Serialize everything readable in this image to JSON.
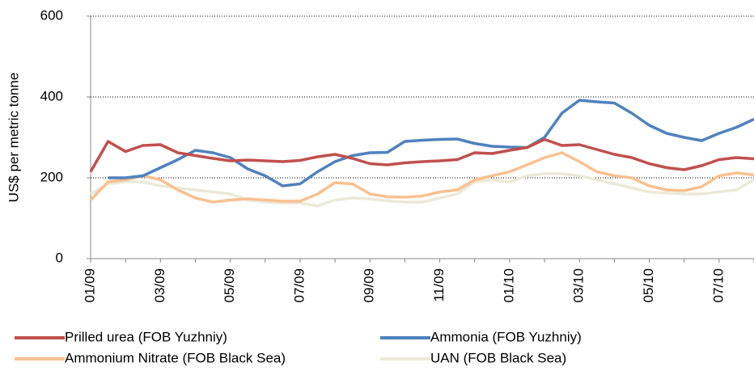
{
  "chart_data": {
    "type": "line",
    "y_label": "US$ per metric tonne",
    "categories": [
      "01/09",
      null,
      null,
      null,
      "03/09",
      null,
      null,
      null,
      "05/09",
      null,
      null,
      null,
      "07/09",
      null,
      null,
      null,
      "09/09",
      null,
      null,
      null,
      "11/09",
      null,
      null,
      null,
      "01/10",
      null,
      null,
      null,
      "03/10",
      null,
      null,
      null,
      "05/10",
      null,
      null,
      null,
      "07/10",
      null,
      null
    ],
    "series": [
      {
        "name": "Prilled urea (FOB Yuzhniy)",
        "color": "#c0504d",
        "values": [
          215,
          290,
          265,
          280,
          282,
          262,
          255,
          248,
          242,
          244,
          242,
          240,
          243,
          252,
          258,
          248,
          235,
          232,
          237,
          240,
          242,
          245,
          262,
          260,
          268,
          275,
          295,
          280,
          282,
          270,
          258,
          250,
          235,
          225,
          220,
          230,
          245,
          250,
          247
        ]
      },
      {
        "name": "Ammonia (FOB Yuzhniy)",
        "color": "#4f81bd",
        "values": [
          null,
          200,
          200,
          205,
          225,
          245,
          268,
          262,
          250,
          222,
          205,
          180,
          185,
          215,
          240,
          255,
          262,
          263,
          290,
          293,
          295,
          296,
          285,
          278,
          276,
          275,
          300,
          360,
          392,
          388,
          385,
          360,
          330,
          310,
          300,
          292,
          310,
          325,
          345
        ]
      },
      {
        "name": "Ammonium Nitrate (FOB Black Sea)",
        "color": "#fac090",
        "values": [
          145,
          190,
          195,
          205,
          195,
          170,
          150,
          140,
          145,
          148,
          145,
          142,
          142,
          160,
          188,
          185,
          160,
          153,
          152,
          155,
          165,
          170,
          195,
          205,
          215,
          232,
          250,
          262,
          240,
          215,
          205,
          200,
          180,
          170,
          168,
          178,
          205,
          212,
          207
        ]
      },
      {
        "name": "UAN (FOB Black Sea)",
        "color": "#ebe9d9",
        "values": [
          160,
          185,
          190,
          190,
          180,
          175,
          170,
          165,
          160,
          145,
          140,
          137,
          138,
          130,
          145,
          150,
          148,
          143,
          140,
          140,
          150,
          160,
          190,
          195,
          190,
          205,
          210,
          210,
          205,
          195,
          185,
          175,
          165,
          162,
          160,
          160,
          165,
          170,
          195
        ]
      }
    ],
    "ylim": [
      0,
      600
    ],
    "yticks": [
      0,
      200,
      400,
      600
    ],
    "grid": true
  }
}
